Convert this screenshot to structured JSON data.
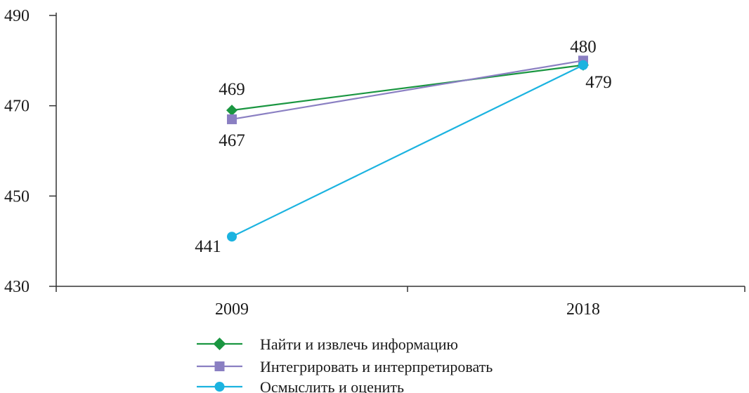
{
  "chart_data": {
    "type": "line",
    "title": "",
    "xlabel": "",
    "ylabel": "",
    "categories": [
      "2009",
      "2018"
    ],
    "y_ticks": [
      "430",
      "450",
      "470",
      "490"
    ],
    "ylim": [
      430,
      490
    ],
    "grid": false,
    "legend_position": "bottom-center",
    "series": [
      {
        "name": "Найти и извлечь информацию",
        "values": [
          469,
          479
        ],
        "labels": [
          "469",
          "479"
        ],
        "marker": "diamond",
        "color": "#1a9641"
      },
      {
        "name": "Интегрировать и интерпретировать",
        "values": [
          467,
          480
        ],
        "labels": [
          "467",
          "480"
        ],
        "marker": "square",
        "color": "#8a7fc2"
      },
      {
        "name": "Осмыслить и оценить",
        "values": [
          441,
          479
        ],
        "labels": [
          "441",
          ""
        ],
        "marker": "circle",
        "color": "#1bb3e0"
      }
    ]
  }
}
